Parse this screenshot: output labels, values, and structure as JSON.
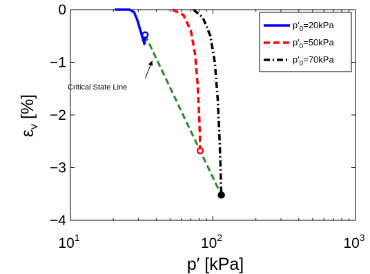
{
  "chart_data": {
    "type": "line",
    "xscale": "log",
    "xlabel": "p′ [kPa]",
    "ylabel": "εv [%]",
    "ylabel_main": "ε",
    "ylabel_sub": "v",
    "ylabel_unit": " [%]",
    "xlim": [
      10,
      1000
    ],
    "ylim": [
      -4,
      0
    ],
    "xticks": [
      {
        "value": 10,
        "base": "10",
        "exp": "1"
      },
      {
        "value": 100,
        "base": "10",
        "exp": "2"
      },
      {
        "value": 1000,
        "base": "10",
        "exp": "3"
      }
    ],
    "yticks": [
      {
        "value": 0,
        "label": "0"
      },
      {
        "value": -1,
        "label": "−1"
      },
      {
        "value": -2,
        "label": "−2"
      },
      {
        "value": -3,
        "label": "−3"
      },
      {
        "value": -4,
        "label": "−4"
      }
    ],
    "grid": false,
    "legend_position": "top-right",
    "series": [
      {
        "name": "p′0=20kPa",
        "name_pre": "p′",
        "name_sub": "0",
        "name_post": "=20kPa",
        "color": "#0000ff",
        "style": "solid",
        "points": [
          [
            20.5,
            0
          ],
          [
            26,
            0
          ],
          [
            28,
            -0.05
          ],
          [
            29.5,
            -0.2
          ],
          [
            31,
            -0.4
          ],
          [
            32.2,
            -0.55
          ],
          [
            33,
            -0.65
          ],
          [
            33.3,
            -0.6
          ],
          [
            33.4,
            -0.5
          ]
        ],
        "end_marker": [
          33.4,
          -0.48
        ]
      },
      {
        "name": "p′0=50kPa",
        "name_pre": "p′",
        "name_sub": "0",
        "name_post": "=50kPa",
        "color": "#ff0000",
        "style": "dashed",
        "points": [
          [
            52,
            0
          ],
          [
            62,
            -0.1
          ],
          [
            70,
            -0.4
          ],
          [
            75,
            -0.85
          ],
          [
            78,
            -1.4
          ],
          [
            80,
            -2.0
          ],
          [
            81,
            -2.4
          ],
          [
            81.3,
            -2.68
          ]
        ],
        "end_marker": [
          81.3,
          -2.68
        ]
      },
      {
        "name": "p′0=70kPa",
        "name_pre": "p′",
        "name_sub": "0",
        "name_post": "=70kPa",
        "color": "#000000",
        "style": "dashdot",
        "points": [
          [
            73,
            0
          ],
          [
            85,
            -0.15
          ],
          [
            96,
            -0.5
          ],
          [
            103,
            -1.0
          ],
          [
            108,
            -1.7
          ],
          [
            111,
            -2.4
          ],
          [
            113,
            -3.0
          ],
          [
            114.5,
            -3.52
          ]
        ],
        "end_marker": [
          114.5,
          -3.52
        ]
      }
    ],
    "critical_state_line": {
      "color": "#228b22",
      "style": "dashed",
      "points": [
        [
          33.4,
          -0.48
        ],
        [
          81.3,
          -2.68
        ],
        [
          114.5,
          -3.52
        ]
      ]
    },
    "annotation": {
      "text": "Critical State Line",
      "arrow_tip": [
        37.5,
        -0.97
      ],
      "arrow_tail": [
        33.5,
        -1.3
      ]
    }
  }
}
